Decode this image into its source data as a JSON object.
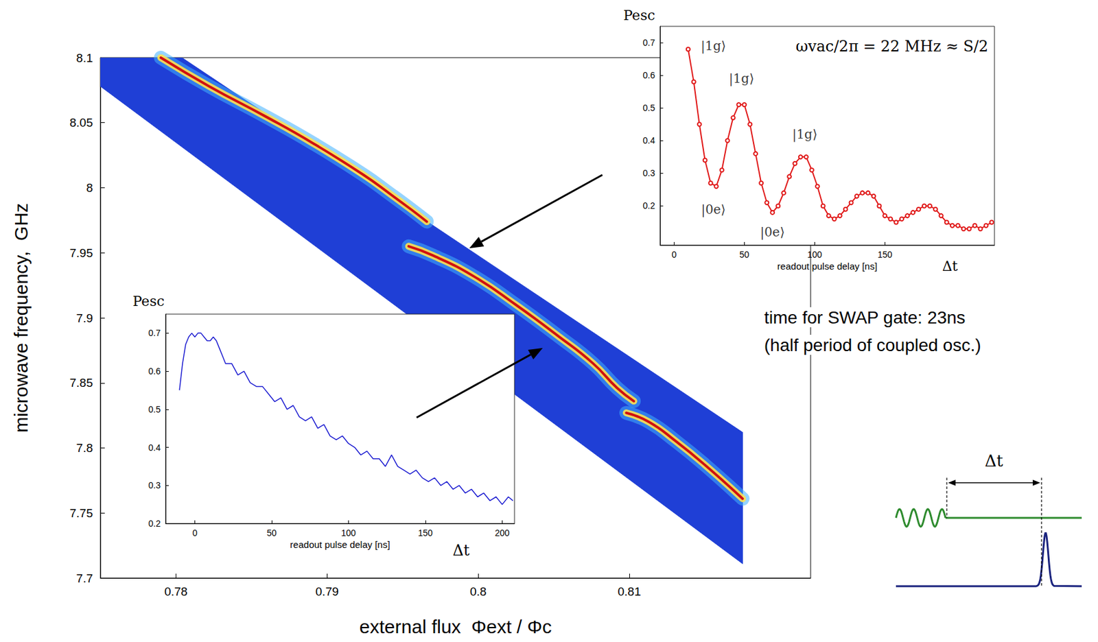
{
  "chart_data": [
    {
      "type": "line",
      "x_label": "external flux  Φext / Φc",
      "y_label": "microwave frequency,  GHz",
      "xlim": [
        0.775,
        0.822
      ],
      "xticks": [
        0.78,
        0.79,
        0.8,
        0.81
      ],
      "ylim": [
        7.7,
        8.1
      ],
      "yticks": [
        7.7,
        7.75,
        7.8,
        7.85,
        7.9,
        7.95,
        8,
        8.05,
        8.1
      ],
      "series": [
        {
          "type": "area",
          "color": "#1f3fd6",
          "x": [
            0.775,
            0.7804,
            0.8175,
            0.8175,
            0.775
          ],
          "values": [
            8.1,
            8.1,
            7.812,
            7.711,
            8.078
          ]
        },
        {
          "type": "line",
          "color": "#d01010",
          "x": [
            0.779,
            0.7822,
            0.7859,
            0.7891,
            0.7924,
            0.7942,
            0.7956,
            0.7966,
            null,
            0.7954,
            0.797,
            0.7997,
            0.8025,
            0.8053,
            0.8076,
            0.8092,
            0.8103,
            null,
            0.8098,
            0.8113,
            0.8131,
            0.815,
            0.8175
          ],
          "values": [
            8.1,
            8.078,
            8.055,
            8.034,
            8.01,
            7.995,
            7.983,
            7.974,
            null,
            7.955,
            7.948,
            7.932,
            7.91,
            7.886,
            7.865,
            7.846,
            7.836,
            null,
            7.827,
            7.82,
            7.805,
            7.787,
            7.761
          ]
        }
      ],
      "annotations": [
        "time for SWAP gate: 23ns",
        "(half period of coupled osc.)",
        "Δt"
      ]
    },
    {
      "type": "line",
      "x_label": "readout pulse delay [ns]",
      "y_label": "Pesc",
      "xlim": [
        -10,
        228
      ],
      "xticks": [
        0,
        50,
        100,
        150
      ],
      "ylim": [
        0.08,
        0.75
      ],
      "yticks": [
        0.2,
        0.3,
        0.4,
        0.5,
        0.6,
        0.7
      ],
      "series": [
        {
          "color": "#e01818",
          "marker": "circle",
          "x": [
            10,
            14,
            18,
            22,
            26,
            30,
            34,
            38,
            42,
            46,
            50,
            54,
            58,
            62,
            66,
            70,
            74,
            78,
            82,
            86,
            90,
            94,
            98,
            102,
            106,
            110,
            114,
            118,
            122,
            126,
            130,
            134,
            138,
            142,
            146,
            150,
            154,
            158,
            162,
            166,
            170,
            174,
            178,
            182,
            186,
            190,
            194,
            198,
            202,
            206,
            210,
            214,
            218,
            222,
            226
          ],
          "values": [
            0.68,
            0.58,
            0.45,
            0.34,
            0.27,
            0.26,
            0.31,
            0.4,
            0.47,
            0.51,
            0.51,
            0.45,
            0.36,
            0.27,
            0.21,
            0.18,
            0.2,
            0.24,
            0.29,
            0.33,
            0.35,
            0.35,
            0.31,
            0.26,
            0.2,
            0.17,
            0.16,
            0.17,
            0.19,
            0.21,
            0.23,
            0.24,
            0.24,
            0.23,
            0.2,
            0.17,
            0.16,
            0.15,
            0.16,
            0.17,
            0.18,
            0.19,
            0.2,
            0.2,
            0.19,
            0.17,
            0.15,
            0.14,
            0.14,
            0.13,
            0.13,
            0.14,
            0.13,
            0.14,
            0.15
          ]
        }
      ],
      "state_labels": [
        {
          "text": "|1g⟩",
          "x": 28,
          "y": 0.69
        },
        {
          "text": "|1g⟩",
          "x": 48,
          "y": 0.59
        },
        {
          "text": "|1g⟩",
          "x": 93,
          "y": 0.42
        },
        {
          "text": "|0e⟩",
          "x": 28,
          "y": 0.19
        },
        {
          "text": "|0e⟩",
          "x": 70,
          "y": 0.12
        }
      ],
      "annotations": [
        "ωvac/2π = 22 MHz ≈ S/2",
        "Δt"
      ]
    },
    {
      "type": "line",
      "x_label": "readout pulse delay [ns]",
      "y_label": "Pesc",
      "xlim": [
        -19,
        208
      ],
      "xticks": [
        0,
        50,
        100,
        150,
        200
      ],
      "ylim": [
        0.2,
        0.75
      ],
      "yticks": [
        0.2,
        0.3,
        0.4,
        0.5,
        0.6,
        0.7
      ],
      "series": [
        {
          "color": "#1a1ad0",
          "x": [
            -10,
            -8,
            -6,
            -4,
            -2,
            0,
            2,
            4,
            6,
            8,
            10,
            12,
            14,
            16,
            18,
            20,
            24,
            28,
            32,
            36,
            40,
            44,
            48,
            52,
            56,
            60,
            64,
            68,
            72,
            76,
            80,
            84,
            88,
            92,
            96,
            100,
            104,
            108,
            112,
            116,
            120,
            124,
            128,
            132,
            136,
            140,
            144,
            148,
            152,
            156,
            160,
            164,
            168,
            172,
            176,
            180,
            184,
            188,
            192,
            196,
            200,
            204,
            207
          ],
          "values": [
            0.55,
            0.62,
            0.67,
            0.69,
            0.7,
            0.69,
            0.7,
            0.7,
            0.69,
            0.68,
            0.68,
            0.69,
            0.68,
            0.66,
            0.64,
            0.62,
            0.62,
            0.59,
            0.6,
            0.57,
            0.56,
            0.56,
            0.54,
            0.52,
            0.53,
            0.5,
            0.51,
            0.48,
            0.47,
            0.48,
            0.45,
            0.46,
            0.43,
            0.42,
            0.43,
            0.41,
            0.4,
            0.38,
            0.39,
            0.37,
            0.37,
            0.35,
            0.38,
            0.35,
            0.34,
            0.33,
            0.34,
            0.32,
            0.31,
            0.32,
            0.3,
            0.31,
            0.29,
            0.3,
            0.28,
            0.29,
            0.27,
            0.28,
            0.26,
            0.27,
            0.25,
            0.27,
            0.26
          ]
        }
      ],
      "annotations": [
        "Δt"
      ]
    }
  ]
}
